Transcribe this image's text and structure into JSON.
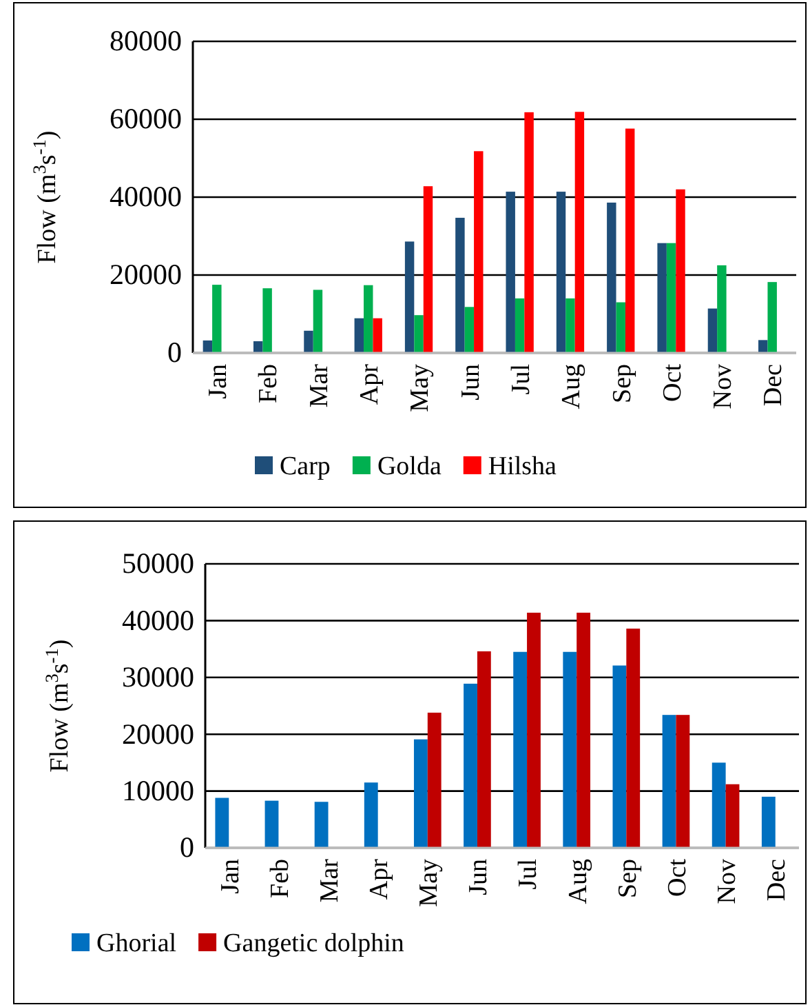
{
  "chart_data": [
    {
      "type": "bar",
      "ylabel": "Flow (m$^{3}$s$^{-1}$)",
      "categories": [
        "Jan",
        "Feb",
        "Mar",
        "Apr",
        "May",
        "Jun",
        "Jul",
        "Aug",
        "Sep",
        "Oct",
        "Nov",
        "Dec"
      ],
      "series": [
        {
          "name": "Carp",
          "color": "#1f4e79",
          "values": [
            3200,
            3000,
            5700,
            8900,
            28600,
            34700,
            41400,
            41400,
            38600,
            28200,
            11400,
            3300
          ]
        },
        {
          "name": "Golda",
          "color": "#00b050",
          "values": [
            17500,
            16600,
            16200,
            17400,
            9700,
            11800,
            14000,
            14000,
            13000,
            28200,
            22500,
            18200
          ]
        },
        {
          "name": "Hilsha",
          "color": "#ff0000",
          "values": [
            null,
            null,
            null,
            8900,
            42800,
            51800,
            61800,
            61900,
            57600,
            42000,
            null,
            null
          ]
        }
      ],
      "ylim": [
        0,
        80000
      ],
      "yticks": [
        0,
        20000,
        40000,
        60000,
        80000
      ],
      "grid": "y",
      "legend": "bottom"
    },
    {
      "type": "bar",
      "ylabel": "Flow (m$^{3}$s$^{-1}$)",
      "categories": [
        "Jan",
        "Feb",
        "Mar",
        "Apr",
        "May",
        "Jun",
        "Jul",
        "Aug",
        "Sep",
        "Oct",
        "Nov",
        "Dec"
      ],
      "series": [
        {
          "name": "Ghorial",
          "color": "#0070c0",
          "values": [
            8800,
            8300,
            8100,
            11500,
            19100,
            28900,
            34500,
            34500,
            32100,
            23400,
            15000,
            9000
          ]
        },
        {
          "name": "Gangetic dolphin",
          "color": "#c00000",
          "values": [
            null,
            null,
            null,
            null,
            23800,
            34600,
            41400,
            41400,
            38600,
            23400,
            11200,
            null
          ]
        }
      ],
      "ylim": [
        0,
        50000
      ],
      "yticks": [
        0,
        10000,
        20000,
        30000,
        40000,
        50000
      ],
      "grid": "y",
      "legend": "bottom"
    }
  ]
}
